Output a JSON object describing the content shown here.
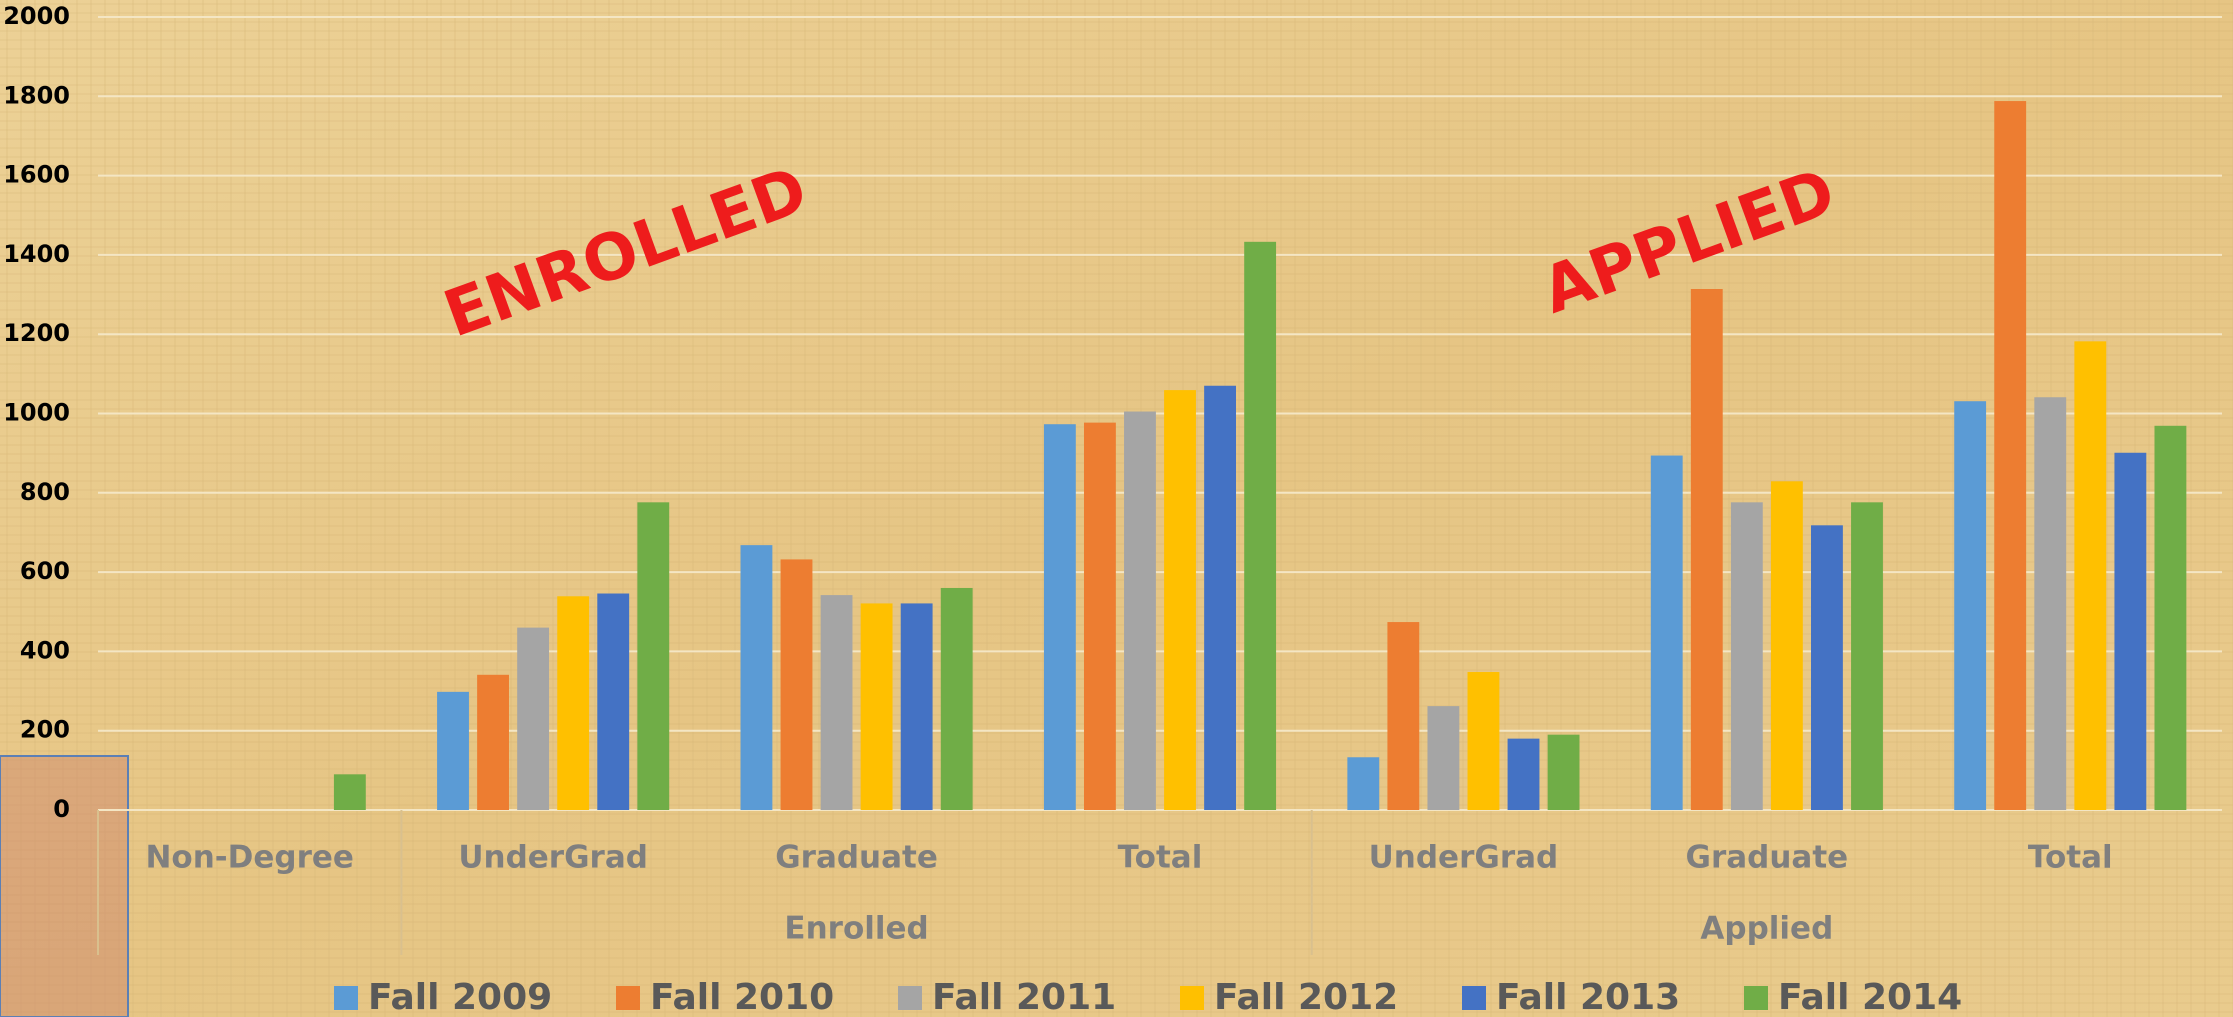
{
  "chart_data": {
    "type": "bar",
    "categories": [
      "Non-Degree",
      "UnderGrad",
      "Graduate",
      "Total",
      "UnderGrad",
      "Graduate",
      "Total"
    ],
    "groups": [
      "Enrolled",
      "Applied"
    ],
    "annotations": [
      "ENROLLED",
      "APPLIED"
    ],
    "series": [
      {
        "name": "Fall 2009",
        "color": "#5b9bd5",
        "values": [
          0,
          298,
          668,
          973,
          133,
          894,
          1031
        ]
      },
      {
        "name": "Fall 2010",
        "color": "#ed7d31",
        "values": [
          0,
          341,
          632,
          977,
          474,
          1314,
          1788
        ]
      },
      {
        "name": "Fall 2011",
        "color": "#a5a5a5",
        "values": [
          0,
          460,
          542,
          1005,
          262,
          776,
          1041
        ]
      },
      {
        "name": "Fall 2012",
        "color": "#ffc000",
        "values": [
          0,
          539,
          521,
          1059,
          348,
          829,
          1182
        ]
      },
      {
        "name": "Fall 2013",
        "color": "#4472c4",
        "values": [
          0,
          546,
          521,
          1070,
          180,
          718,
          901
        ]
      },
      {
        "name": "Fall 2014",
        "color": "#70ad47",
        "values": [
          90,
          776,
          560,
          1433,
          190,
          776,
          969
        ]
      }
    ],
    "ylim": [
      0,
      2000
    ],
    "yticks": [
      0,
      200,
      400,
      600,
      800,
      1000,
      1200,
      1400,
      1600,
      1800,
      2000
    ],
    "grid": true,
    "legend": "bottom"
  }
}
